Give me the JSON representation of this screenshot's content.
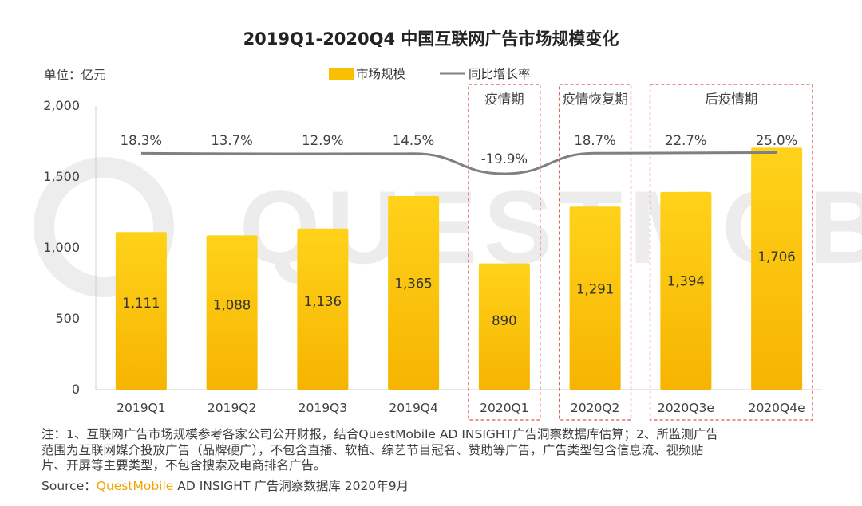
{
  "chart_data": {
    "type": "bar",
    "title": "2019Q1-2020Q4 中国互联网广告市场规模变化",
    "unit_label": "单位：亿元",
    "categories": [
      "2019Q1",
      "2019Q2",
      "2019Q3",
      "2019Q4",
      "2020Q1",
      "2020Q2",
      "2020Q3e",
      "2020Q4e"
    ],
    "series": [
      {
        "name": "市场规模",
        "type": "bar",
        "values": [
          1111,
          1088,
          1136,
          1365,
          890,
          1291,
          1394,
          1706
        ],
        "value_labels": [
          "1,111",
          "1,088",
          "1,136",
          "1,365",
          "890",
          "1,291",
          "1,394",
          "1,706"
        ]
      },
      {
        "name": "同比增长率",
        "type": "line",
        "values": [
          18.3,
          13.7,
          12.9,
          14.5,
          -19.9,
          18.7,
          22.7,
          25.0
        ],
        "value_labels": [
          "18.3%",
          "13.7%",
          "12.9%",
          "14.5%",
          "-19.9%",
          "18.7%",
          "22.7%",
          "25.0%"
        ]
      }
    ],
    "ylim": [
      0,
      2000
    ],
    "yticks": [
      0,
      500,
      1000,
      1500,
      2000
    ],
    "ytick_labels": [
      "0",
      "500",
      "1,000",
      "1,500",
      "2,000"
    ],
    "legend_position": "top-center",
    "grid": false,
    "annotations": [
      {
        "label": "疫情期",
        "categories": [
          "2020Q1"
        ]
      },
      {
        "label": "疫情恢复期",
        "categories": [
          "2020Q2"
        ]
      },
      {
        "label": "后疫情期",
        "categories": [
          "2020Q3e",
          "2020Q4e"
        ]
      }
    ]
  },
  "colors": {
    "bar_top": "#ffd21a",
    "bar_bottom": "#f6b400",
    "line": "#808080",
    "box": "#d9534f",
    "brand": "#f5a300"
  },
  "watermark_text": "QUESTMOBILE",
  "notes": {
    "line1": "注：1、互联网广告市场规模参考各家公司公开财报，结合QuestMobile AD INSIGHT广告洞察数据库估算；2、所监测广告",
    "line2": "范围为互联网媒介投放广告（品牌硬广），不包含直播、软植、综艺节目冠名、赞助等广告，广告类型包含信息流、视频贴",
    "line3": "片、开屏等主要类型，不包含搜索及电商排名广告。"
  },
  "source": {
    "prefix": "Source：",
    "brand": "QuestMobile",
    "rest": " AD INSIGHT 广告洞察数据库 2020年9月"
  }
}
